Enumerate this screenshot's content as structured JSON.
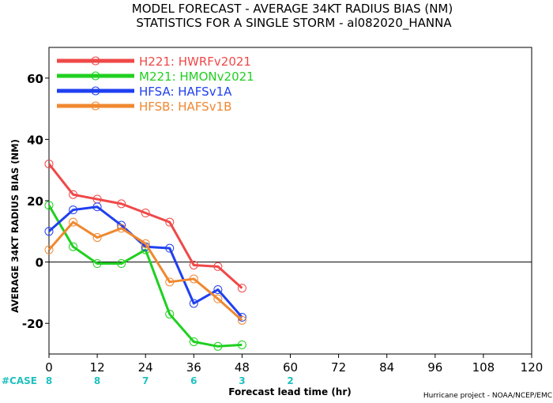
{
  "chart_data": {
    "type": "line",
    "title_line1": "MODEL FORECAST - AVERAGE 34KT RADIUS BIAS (NM)",
    "title_line2": "STATISTICS FOR A SINGLE STORM - al082020_HANNA",
    "ylabel": "AVERAGE 34KT RADIUS BIAS (NM)",
    "xlabel": "Forecast lead time (hr)",
    "credit": "Hurricane project - NOAA/NCEP/EMC",
    "xlim": [
      0,
      120
    ],
    "ylim": [
      -30,
      70
    ],
    "x_ticks": [
      0,
      12,
      24,
      36,
      48,
      60,
      72,
      84,
      96,
      108,
      120
    ],
    "y_ticks": [
      -20,
      0,
      20,
      40,
      60
    ],
    "zero_line": true,
    "legend_position": "top-left",
    "cases": {
      "label": "#CASE",
      "color": "#20c0c0",
      "x": [
        0,
        12,
        24,
        36,
        48,
        60
      ],
      "values": [
        "8",
        "8",
        "7",
        "6",
        "3",
        "2"
      ]
    },
    "x": [
      0,
      6,
      12,
      18,
      24,
      30,
      36,
      42,
      48
    ],
    "series": [
      {
        "name": "H221: HWRFv2021",
        "color": "#f04848",
        "values": [
          32,
          22,
          20.5,
          19,
          16,
          13,
          -1,
          -1.5,
          -8.5
        ]
      },
      {
        "name": "M221: HMONv2021",
        "color": "#20d020",
        "values": [
          18.5,
          5,
          -0.5,
          -0.5,
          4,
          -17,
          -26,
          -27.5,
          -27
        ]
      },
      {
        "name": "HFSA: HAFSv1A",
        "color": "#2040f0",
        "values": [
          10,
          17,
          18,
          12,
          5,
          4.5,
          -13.5,
          -9,
          -18
        ]
      },
      {
        "name": "HFSB: HAFSv1B",
        "color": "#f08830",
        "values": [
          4,
          13,
          8,
          11,
          6,
          -6.5,
          -5.5,
          -12,
          -19
        ]
      }
    ]
  }
}
